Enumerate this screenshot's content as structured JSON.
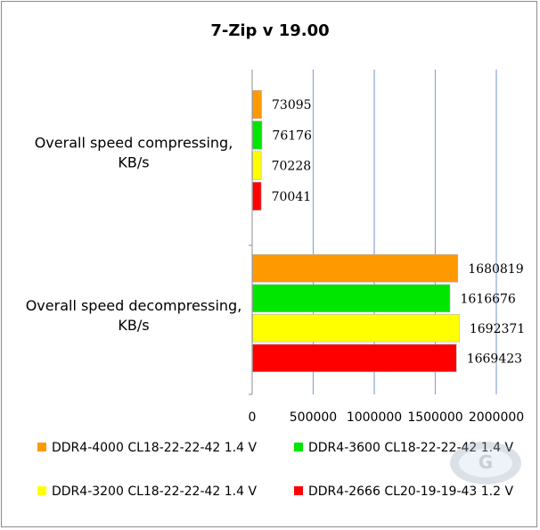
{
  "chart_data": {
    "type": "bar",
    "orientation": "horizontal",
    "title": "7-Zip v 19.00",
    "categories": [
      "Overall speed compressing, KB/s",
      "Overall speed decompressing, KB/s"
    ],
    "category_label_lines": [
      [
        "Overall speed compressing,",
        "KB/s"
      ],
      [
        "Overall speed decompressing,",
        "KB/s"
      ]
    ],
    "series": [
      {
        "name": "DDR4-4000 CL18-22-22-42 1.4 V",
        "color": "#ff9900",
        "values": [
          73095,
          1680819
        ]
      },
      {
        "name": "DDR4-3600 CL18-22-22-42 1.4 V",
        "color": "#00e600",
        "values": [
          76176,
          1616676
        ]
      },
      {
        "name": "DDR4-3200 CL18-22-22-42 1.4 V",
        "color": "#ffff00",
        "values": [
          70228,
          1692371
        ]
      },
      {
        "name": "DDR4-2666 CL20-19-19-43 1.2 V",
        "color": "#ff0000",
        "values": [
          70041,
          1669423
        ]
      }
    ],
    "x_ticks": [
      "0",
      "500000",
      "1000000",
      "1500000",
      "2000000"
    ],
    "xlim": [
      0,
      2000000
    ],
    "xlabel": "",
    "ylabel": "",
    "grid": "vertical",
    "legend_position": "bottom",
    "watermark": "GECID"
  }
}
